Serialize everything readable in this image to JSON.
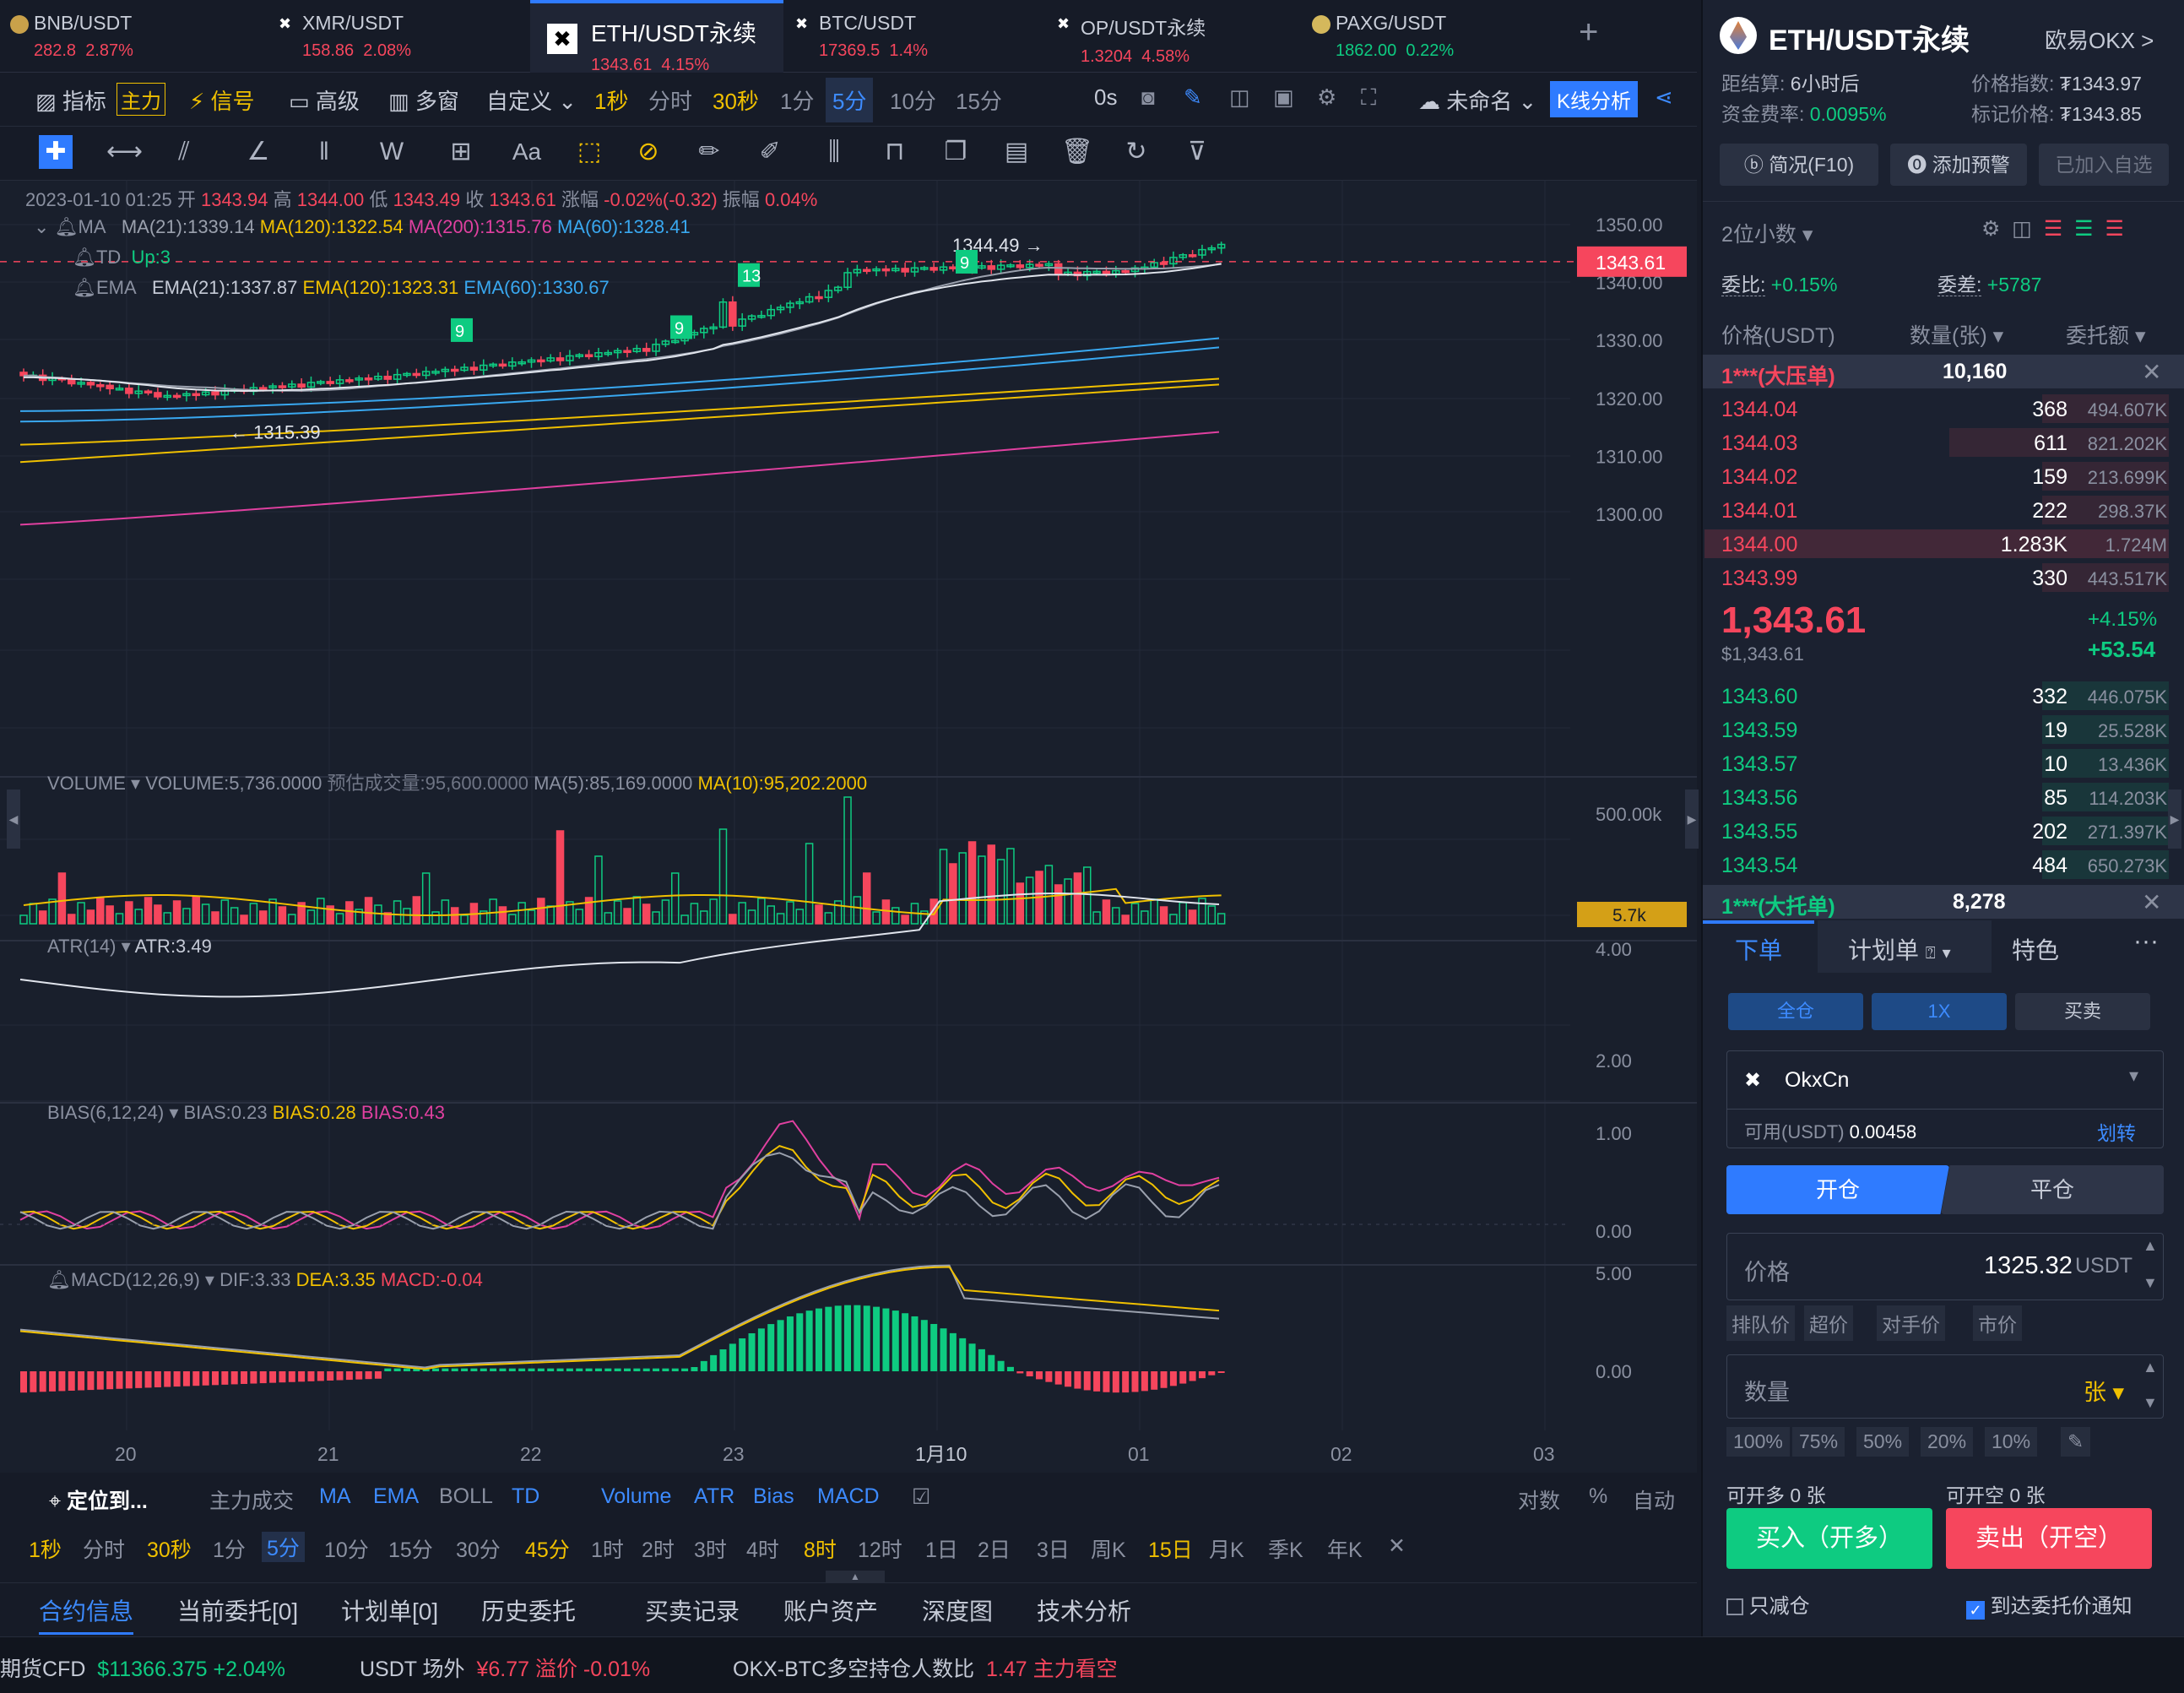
{
  "tabs": [
    {
      "name": "BNB/USDT",
      "price": "282.8",
      "change": "2.87%"
    },
    {
      "name": "XMR/USDT",
      "price": "158.86",
      "change": "2.08%"
    },
    {
      "name": "ETH/USDT永续",
      "price": "1343.61",
      "change": "4.15%"
    },
    {
      "name": "BTC/USDT",
      "price": "17369.5",
      "change": "1.4%"
    },
    {
      "name": "OP/USDT永续",
      "price": "1.3204",
      "change": "4.58%"
    },
    {
      "name": "PAXG/USDT",
      "price": "1862.00",
      "change": "0.22%"
    }
  ],
  "add_tab": "+",
  "toolbar": {
    "indicator": "指标",
    "main": "主力",
    "signal": "信号",
    "advanced": "高级",
    "multi": "多窗",
    "custom": "自定义",
    "periods": [
      "1秒",
      "分时",
      "30秒",
      "1分",
      "5分",
      "10分",
      "15分"
    ],
    "countdown": "0s",
    "unnamed": "未命名",
    "kline": "K线分析"
  },
  "drawing_tools": [
    "crosshair",
    "line",
    "ray",
    "angle",
    "channel",
    "wave",
    "rect",
    "Aa",
    "pencil",
    "eraser",
    "ruler",
    "brush",
    "candle",
    "lock",
    "copy",
    "edit",
    "trash",
    "magnet",
    "filter"
  ],
  "ohlc": {
    "date": "2023-01-10 01:25",
    "o_label": "开",
    "o": "1343.94",
    "h_label": "高",
    "h": "1344.00",
    "l_label": "低",
    "l": "1343.49",
    "c_label": "收",
    "c": "1343.61",
    "chg_label": "涨幅",
    "chg": "-0.02%(-0.32)",
    "amp_label": "振幅",
    "amp": "0.04%"
  },
  "ma_line": {
    "label": "MA",
    "ma21": "MA(21):1339.14",
    "ma120": "MA(120):1322.54",
    "ma200": "MA(200):1315.76",
    "ma60": "MA(60):1328.41"
  },
  "td_line": {
    "label": "TD",
    "up": "Up:3"
  },
  "ema_line": {
    "label": "EMA",
    "ema21": "EMA(21):1337.87",
    "ema120": "EMA(120):1323.31",
    "ema60": "EMA(60):1330.67"
  },
  "price_axis": [
    "1350.00",
    "1340.00",
    "1330.00",
    "1320.00",
    "1310.00",
    "1300.00"
  ],
  "current_price_tag": "1343.61",
  "high_mark": "1344.49 →",
  "low_mark": "← 1315.39",
  "td_labels": [
    "9",
    "9",
    "13",
    "9"
  ],
  "volume": {
    "label": "VOLUME",
    "v": "VOLUME:5,736.0000",
    "est": "预估成交量:95,600.0000",
    "ma5": "MA(5):85,169.0000",
    "ma10": "MA(10):95,202.2000",
    "axis_top": "500.00k",
    "tag": "5.7k"
  },
  "atr": {
    "label": "ATR(14)",
    "v": "ATR:3.49",
    "axis": [
      "4.00",
      "2.00"
    ]
  },
  "bias": {
    "label": "BIAS(6,12,24)",
    "b1": "BIAS:0.23",
    "b2": "BIAS:0.28",
    "b3": "BIAS:0.43",
    "axis": [
      "1.00",
      "0.00"
    ]
  },
  "macd": {
    "label": "MACD(12,26,9)",
    "dif": "DIF:3.33",
    "dea": "DEA:3.35",
    "macd": "MACD:-0.04",
    "axis": [
      "5.00",
      "0.00"
    ]
  },
  "time_axis": [
    "20",
    "21",
    "22",
    "23",
    "1月10",
    "01",
    "02",
    "03"
  ],
  "bottom_row1": {
    "locate": "定位到...",
    "items": [
      "主力成交",
      "MA",
      "EMA",
      "BOLL",
      "TD",
      "Volume",
      "ATR",
      "Bias",
      "MACD"
    ],
    "right": [
      "对数",
      "%",
      "自动"
    ]
  },
  "bottom_row2": [
    "1秒",
    "分时",
    "30秒",
    "1分",
    "5分",
    "10分",
    "15分",
    "30分",
    "45分",
    "1时",
    "2时",
    "3时",
    "4时",
    "8时",
    "12时",
    "1日",
    "2日",
    "3日",
    "周K",
    "15日",
    "月K",
    "季K",
    "年K",
    "✕"
  ],
  "bottom_tabs": [
    "合约信息",
    "当前委托[0]",
    "计划单[0]",
    "历史委托",
    "买卖记录",
    "账户资产",
    "深度图",
    "技术分析"
  ],
  "ticker": {
    "t1": "期货CFD",
    "v1": "$11366.375",
    "c1": "+2.04%",
    "t2": "USDT 场外",
    "v2": "¥6.77",
    "c2": "溢价 -0.01%",
    "t3": "OKX-BTC多空持仓人数比",
    "v3": "1.47",
    "c3": "主力看空"
  },
  "right": {
    "title": "ETH/USDT永续",
    "exchange": "欧易OKX >",
    "settle_label": "距结算:",
    "settle": "6小时后",
    "index_label": "价格指数:",
    "index": "₮1343.97",
    "fund_label": "资金费率:",
    "fund": "0.0095%",
    "mark_label": "标记价格:",
    "mark": "₮1343.85",
    "btn1": "简况(F10)",
    "btn2": "添加预警",
    "btn3": "已加入自选",
    "decimals": "2位小数",
    "wb_label": "委比:",
    "wb": "+0.15%",
    "wc_label": "委差:",
    "wc": "+5787",
    "col_price": "价格(USDT)",
    "col_qty": "数量(张)",
    "col_amt": "委托额",
    "big_ask": "1***(大压单)",
    "big_ask_qty": "10,160",
    "asks": [
      [
        "1344.04",
        "368",
        "494.607K"
      ],
      [
        "1344.03",
        "611",
        "821.202K"
      ],
      [
        "1344.02",
        "159",
        "213.699K"
      ],
      [
        "1344.01",
        "222",
        "298.37K"
      ],
      [
        "1344.00",
        "1.283K",
        "1.724M"
      ],
      [
        "1343.99",
        "330",
        "443.517K"
      ]
    ],
    "last": "1,343.61",
    "last_usd": "$1,343.61",
    "last_pct": "+4.15%",
    "last_chg": "+53.54",
    "bids": [
      [
        "1343.60",
        "332",
        "446.075K"
      ],
      [
        "1343.59",
        "19",
        "25.528K"
      ],
      [
        "1343.57",
        "10",
        "13.436K"
      ],
      [
        "1343.56",
        "85",
        "114.203K"
      ],
      [
        "1343.55",
        "202",
        "271.397K"
      ],
      [
        "1343.54",
        "484",
        "650.273K"
      ]
    ],
    "big_bid": "1***(大托单)",
    "big_bid_qty": "8,278",
    "order_tabs": [
      "下单",
      "计划单",
      "特色"
    ],
    "mode": [
      "全仓",
      "1X",
      "买卖"
    ],
    "account": "OkxCn",
    "avail_label": "可用(USDT)",
    "avail": "0.00458",
    "transfer": "划转",
    "open": "开仓",
    "close": "平仓",
    "price_label": "价格",
    "price_val": "1325.32",
    "price_unit": "USDT",
    "price_btns": [
      "排队价",
      "超价",
      "对手价",
      "市价"
    ],
    "qty_label": "数量",
    "qty_unit": "张",
    "pct_btns": [
      "100%",
      "75%",
      "50%",
      "20%",
      "10%"
    ],
    "can_long": "可开多 0 张",
    "can_short": "可开空 0 张",
    "buy": "买入（开多）",
    "sell": "卖出（开空）",
    "reduce": "只减仓",
    "notify": "到达委托价通知"
  }
}
